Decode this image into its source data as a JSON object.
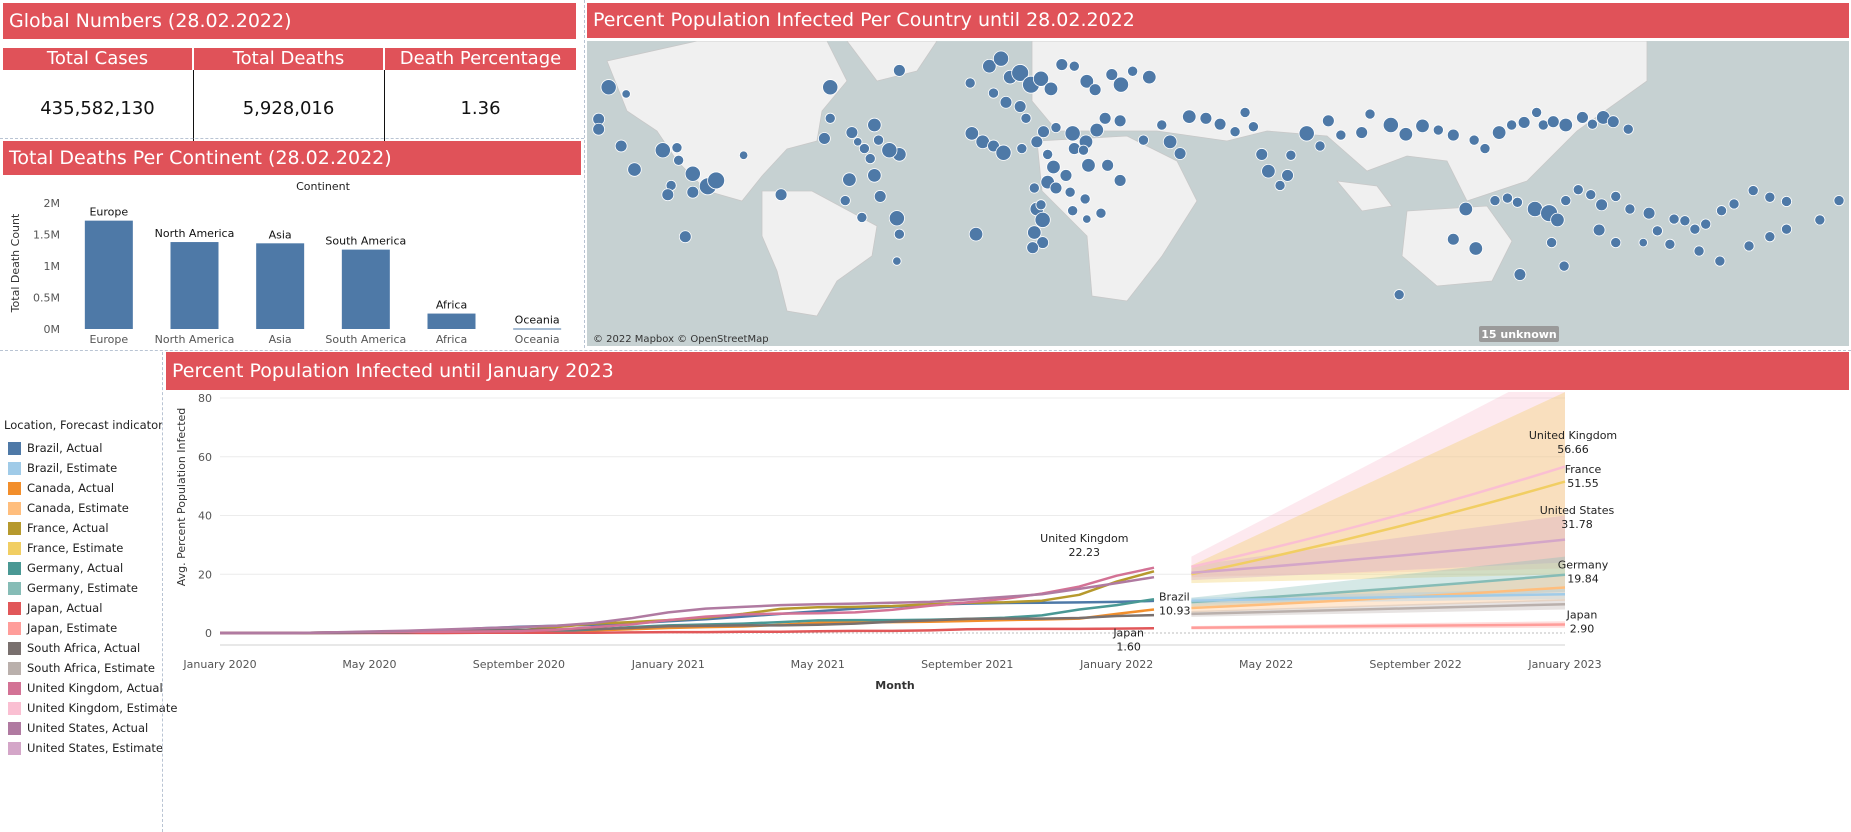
{
  "global": {
    "title": "Global Numbers (28.02.2022)",
    "headers": [
      "Total Cases",
      "Total Deaths",
      "Death Percentage"
    ],
    "values": [
      "435,582,130",
      "5,928,016",
      "1.36"
    ]
  },
  "map": {
    "title": "Percent Population Infected Per Country until 28.02.2022",
    "attribution": "© 2022 Mapbox © OpenStreetMap",
    "unknown_badge": "15 unknown",
    "bubble_color": "#4e79a7"
  },
  "continent": {
    "title": "Total Deaths Per Continent (28.02.2022)",
    "column_header": "Continent"
  },
  "legend": {
    "title": "Location, Forecast indicator",
    "items": [
      {
        "label": "Brazil, Actual",
        "color": "#4e79a7"
      },
      {
        "label": "Brazil, Estimate",
        "color": "#a0cbe8"
      },
      {
        "label": "Canada, Actual",
        "color": "#f28e2b"
      },
      {
        "label": "Canada, Estimate",
        "color": "#ffbe7d"
      },
      {
        "label": "France, Actual",
        "color": "#b6992d"
      },
      {
        "label": "France, Estimate",
        "color": "#f1ce63"
      },
      {
        "label": "Germany, Actual",
        "color": "#499894"
      },
      {
        "label": "Germany, Estimate",
        "color": "#86bcb6"
      },
      {
        "label": "Japan, Actual",
        "color": "#e15759"
      },
      {
        "label": "Japan, Estimate",
        "color": "#ff9d9a"
      },
      {
        "label": "South Africa, Actual",
        "color": "#79706e"
      },
      {
        "label": "South Africa, Estimate",
        "color": "#bab0ac"
      },
      {
        "label": "United Kingdom, Actual",
        "color": "#d37295"
      },
      {
        "label": "United Kingdom, Estimate",
        "color": "#fabfd2"
      },
      {
        "label": "United States, Actual",
        "color": "#b07aa1"
      },
      {
        "label": "United States, Estimate",
        "color": "#d4a6c8"
      }
    ]
  },
  "infected": {
    "title": "Percent Population Infected until January 2023"
  },
  "chart_data": [
    {
      "type": "bar",
      "title": "Total Deaths Per Continent (28.02.2022)",
      "xlabel": "Continent",
      "ylabel": "Total Death Count",
      "categories": [
        "Europe",
        "North America",
        "Asia",
        "South America",
        "Africa",
        "Oceania"
      ],
      "values": [
        1720000,
        1380000,
        1360000,
        1260000,
        245000,
        8000
      ],
      "ylim": [
        0,
        2000000
      ],
      "yticks": [
        0,
        500000,
        1000000,
        1500000,
        2000000
      ],
      "ytick_labels": [
        "0M",
        "0.5M",
        "1M",
        "1.5M",
        "2M"
      ],
      "color": "#4e79a7"
    },
    {
      "type": "line",
      "title": "Percent Population Infected until January 2023",
      "xlabel": "Month",
      "ylabel": "Avg. Percent Population Infected",
      "ylim": [
        0,
        80
      ],
      "yticks": [
        0,
        20,
        40,
        60,
        80
      ],
      "xticks": [
        "2020-01",
        "2020-05",
        "2020-09",
        "2021-01",
        "2021-05",
        "2021-09",
        "2022-01",
        "2022-05",
        "2022-09",
        "2023-01"
      ],
      "xtick_labels": [
        "January 2020",
        "May 2020",
        "September 2020",
        "January 2021",
        "May 2021",
        "September 2021",
        "January 2022",
        "May 2022",
        "September 2022",
        "January 2023"
      ],
      "x": [
        "2020-01",
        "2020-02",
        "2020-03",
        "2020-04",
        "2020-05",
        "2020-06",
        "2020-07",
        "2020-08",
        "2020-09",
        "2020-10",
        "2020-11",
        "2020-12",
        "2021-01",
        "2021-02",
        "2021-03",
        "2021-04",
        "2021-05",
        "2021-06",
        "2021-07",
        "2021-08",
        "2021-09",
        "2021-10",
        "2021-11",
        "2021-12",
        "2022-01",
        "2022-02"
      ],
      "series": [
        {
          "name": "Brazil, Actual",
          "color": "#4e79a7",
          "values": [
            0,
            0,
            0,
            0.1,
            0.3,
            0.6,
            1.0,
            1.6,
            2.1,
            2.5,
            2.8,
            3.3,
            4.0,
            4.7,
            5.6,
            6.5,
            7.4,
            8.3,
            9.0,
            9.6,
            10.0,
            10.2,
            10.3,
            10.4,
            10.6,
            10.93
          ]
        },
        {
          "name": "Canada, Actual",
          "color": "#f28e2b",
          "values": [
            0,
            0,
            0,
            0.1,
            0.2,
            0.3,
            0.3,
            0.3,
            0.4,
            0.6,
            0.9,
            1.3,
            1.7,
            2.0,
            2.2,
            2.8,
            3.5,
            3.7,
            3.7,
            3.8,
            4.1,
            4.4,
            4.6,
            4.9,
            6.5,
            8.0
          ]
        },
        {
          "name": "France, Actual",
          "color": "#b6992d",
          "values": [
            0,
            0,
            0,
            0.2,
            0.3,
            0.3,
            0.3,
            0.5,
            0.9,
            2.0,
            3.2,
            3.7,
            4.4,
            5.2,
            6.5,
            8.2,
            8.8,
            8.9,
            9.2,
            9.8,
            10.3,
            10.5,
            11.0,
            13.0,
            17.5,
            21.0
          ]
        },
        {
          "name": "Germany, Actual",
          "color": "#499894",
          "values": [
            0,
            0,
            0,
            0.2,
            0.2,
            0.2,
            0.3,
            0.3,
            0.4,
            0.7,
            1.2,
            2.0,
            2.6,
            2.9,
            3.2,
            3.7,
            4.3,
            4.4,
            4.4,
            4.5,
            4.8,
            5.2,
            6.0,
            8.0,
            9.5,
            11.5
          ]
        },
        {
          "name": "Japan, Actual",
          "color": "#e15759",
          "values": [
            0,
            0,
            0,
            0,
            0,
            0,
            0,
            0.1,
            0.1,
            0.1,
            0.1,
            0.2,
            0.3,
            0.3,
            0.4,
            0.4,
            0.6,
            0.7,
            0.7,
            0.9,
            1.3,
            1.35,
            1.4,
            1.4,
            1.5,
            1.6
          ]
        },
        {
          "name": "South Africa, Actual",
          "color": "#79706e",
          "values": [
            0,
            0,
            0,
            0,
            0.1,
            0.2,
            0.8,
            1.0,
            1.1,
            1.2,
            1.3,
            1.7,
            2.3,
            2.5,
            2.6,
            2.6,
            2.8,
            3.2,
            3.8,
            4.3,
            4.8,
            4.9,
            4.9,
            5.1,
            5.8,
            6.1
          ]
        },
        {
          "name": "United Kingdom, Actual",
          "color": "#d37295",
          "values": [
            0,
            0,
            0,
            0.2,
            0.3,
            0.4,
            0.4,
            0.5,
            0.6,
            1.1,
            2.0,
            2.9,
            4.4,
            5.6,
            6.3,
            6.6,
            6.7,
            7.0,
            7.9,
            9.3,
            10.4,
            11.6,
            13.4,
            15.8,
            19.5,
            22.23
          ]
        },
        {
          "name": "United States, Actual",
          "color": "#b07aa1",
          "values": [
            0,
            0,
            0,
            0.2,
            0.5,
            0.8,
            1.2,
            1.6,
            2.0,
            2.5,
            3.4,
            5.0,
            7.0,
            8.3,
            8.9,
            9.5,
            9.8,
            10.0,
            10.3,
            10.6,
            11.4,
            12.3,
            13.2,
            15.0,
            17.0,
            19.0
          ]
        }
      ],
      "forecast": {
        "x": [
          "2022-03",
          "2023-01"
        ],
        "series": [
          {
            "name": "United Kingdom, Estimate",
            "color": "#fabfd2",
            "start": 22.5,
            "end": 56.66,
            "low": [
              19,
              22
            ],
            "high": [
              26,
              92
            ]
          },
          {
            "name": "France, Estimate",
            "color": "#f1ce63",
            "start": 20,
            "end": 51.55,
            "low": [
              17,
              20
            ],
            "high": [
              23,
              82
            ]
          },
          {
            "name": "United States, Estimate",
            "color": "#d4a6c8",
            "start": 20.5,
            "end": 31.78,
            "low": [
              18,
              24
            ],
            "high": [
              23,
              40
            ]
          },
          {
            "name": "Germany, Estimate",
            "color": "#86bcb6",
            "start": 10.5,
            "end": 19.84,
            "low": [
              9,
              14
            ],
            "high": [
              12,
              26
            ]
          },
          {
            "name": "Canada, Estimate",
            "color": "#ffbe7d",
            "start": 8.5,
            "end": 15.5,
            "low": [
              7,
              11
            ],
            "high": [
              10,
              20
            ]
          },
          {
            "name": "Brazil, Estimate",
            "color": "#a0cbe8",
            "start": 11,
            "end": 13.2,
            "low": [
              10,
              11.5
            ],
            "high": [
              12,
              15
            ]
          },
          {
            "name": "South Africa, Estimate",
            "color": "#bab0ac",
            "start": 6.5,
            "end": 9.8,
            "low": [
              5.5,
              8
            ],
            "high": [
              7.5,
              11.5
            ]
          },
          {
            "name": "Japan, Estimate",
            "color": "#ff9d9a",
            "start": 1.8,
            "end": 2.9,
            "low": [
              1.2,
              1.8
            ],
            "high": [
              2.4,
              4.0
            ]
          }
        ]
      },
      "annotations": [
        {
          "label": "United Kingdom",
          "value": "22.23"
        },
        {
          "label": "Brazil",
          "value": "10.93"
        },
        {
          "label": "Japan",
          "value": "1.60"
        },
        {
          "label": "United Kingdom",
          "value": "56.66"
        },
        {
          "label": "France",
          "value": "51.55"
        },
        {
          "label": "United States",
          "value": "31.78"
        },
        {
          "label": "Germany",
          "value": "19.84"
        },
        {
          "label": "Japan",
          "value": "2.90"
        }
      ]
    }
  ]
}
